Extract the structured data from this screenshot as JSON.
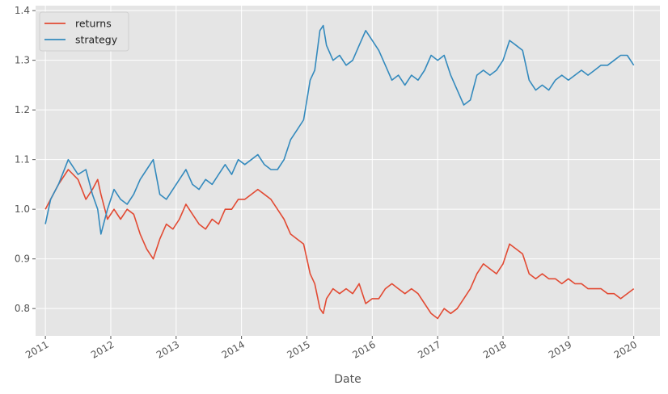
{
  "chart_data": {
    "type": "line",
    "title": "",
    "xlabel": "Date",
    "ylabel": "",
    "x_ticks": [
      "2011",
      "2012",
      "2013",
      "2014",
      "2015",
      "2016",
      "2017",
      "2018",
      "2019",
      "2020"
    ],
    "y_ticks": [
      "0.8",
      "0.9",
      "1.0",
      "1.1",
      "1.2",
      "1.3",
      "1.4"
    ],
    "xlim": [
      2010.85,
      2020.4
    ],
    "ylim": [
      0.745,
      1.41
    ],
    "grid": true,
    "legend_position": "top-left",
    "series": [
      {
        "name": "returns",
        "color": "#E24A33",
        "points": [
          [
            2011.0,
            1.0
          ],
          [
            2011.08,
            1.02
          ],
          [
            2011.2,
            1.05
          ],
          [
            2011.35,
            1.08
          ],
          [
            2011.5,
            1.06
          ],
          [
            2011.62,
            1.02
          ],
          [
            2011.72,
            1.04
          ],
          [
            2011.8,
            1.06
          ],
          [
            2011.85,
            1.03
          ],
          [
            2011.95,
            0.98
          ],
          [
            2012.05,
            1.0
          ],
          [
            2012.15,
            0.98
          ],
          [
            2012.25,
            1.0
          ],
          [
            2012.35,
            0.99
          ],
          [
            2012.45,
            0.95
          ],
          [
            2012.55,
            0.92
          ],
          [
            2012.65,
            0.9
          ],
          [
            2012.75,
            0.94
          ],
          [
            2012.85,
            0.97
          ],
          [
            2012.95,
            0.96
          ],
          [
            2013.05,
            0.98
          ],
          [
            2013.15,
            1.01
          ],
          [
            2013.25,
            0.99
          ],
          [
            2013.35,
            0.97
          ],
          [
            2013.45,
            0.96
          ],
          [
            2013.55,
            0.98
          ],
          [
            2013.65,
            0.97
          ],
          [
            2013.75,
            1.0
          ],
          [
            2013.85,
            1.0
          ],
          [
            2013.95,
            1.02
          ],
          [
            2014.05,
            1.02
          ],
          [
            2014.15,
            1.03
          ],
          [
            2014.25,
            1.04
          ],
          [
            2014.35,
            1.03
          ],
          [
            2014.45,
            1.02
          ],
          [
            2014.55,
            1.0
          ],
          [
            2014.65,
            0.98
          ],
          [
            2014.75,
            0.95
          ],
          [
            2014.85,
            0.94
          ],
          [
            2014.95,
            0.93
          ],
          [
            2015.0,
            0.9
          ],
          [
            2015.05,
            0.87
          ],
          [
            2015.12,
            0.85
          ],
          [
            2015.2,
            0.8
          ],
          [
            2015.25,
            0.79
          ],
          [
            2015.3,
            0.82
          ],
          [
            2015.4,
            0.84
          ],
          [
            2015.5,
            0.83
          ],
          [
            2015.6,
            0.84
          ],
          [
            2015.7,
            0.83
          ],
          [
            2015.8,
            0.85
          ],
          [
            2015.9,
            0.81
          ],
          [
            2016.0,
            0.82
          ],
          [
            2016.1,
            0.82
          ],
          [
            2016.2,
            0.84
          ],
          [
            2016.3,
            0.85
          ],
          [
            2016.4,
            0.84
          ],
          [
            2016.5,
            0.83
          ],
          [
            2016.6,
            0.84
          ],
          [
            2016.7,
            0.83
          ],
          [
            2016.8,
            0.81
          ],
          [
            2016.9,
            0.79
          ],
          [
            2017.0,
            0.78
          ],
          [
            2017.1,
            0.8
          ],
          [
            2017.2,
            0.79
          ],
          [
            2017.3,
            0.8
          ],
          [
            2017.4,
            0.82
          ],
          [
            2017.5,
            0.84
          ],
          [
            2017.6,
            0.87
          ],
          [
            2017.7,
            0.89
          ],
          [
            2017.8,
            0.88
          ],
          [
            2017.9,
            0.87
          ],
          [
            2018.0,
            0.89
          ],
          [
            2018.1,
            0.93
          ],
          [
            2018.2,
            0.92
          ],
          [
            2018.3,
            0.91
          ],
          [
            2018.4,
            0.87
          ],
          [
            2018.5,
            0.86
          ],
          [
            2018.6,
            0.87
          ],
          [
            2018.7,
            0.86
          ],
          [
            2018.8,
            0.86
          ],
          [
            2018.9,
            0.85
          ],
          [
            2019.0,
            0.86
          ],
          [
            2019.1,
            0.85
          ],
          [
            2019.2,
            0.85
          ],
          [
            2019.3,
            0.84
          ],
          [
            2019.4,
            0.84
          ],
          [
            2019.5,
            0.84
          ],
          [
            2019.6,
            0.83
          ],
          [
            2019.7,
            0.83
          ],
          [
            2019.8,
            0.82
          ],
          [
            2019.9,
            0.83
          ],
          [
            2020.0,
            0.84
          ]
        ]
      },
      {
        "name": "strategy",
        "color": "#348ABD",
        "points": [
          [
            2011.0,
            0.97
          ],
          [
            2011.08,
            1.02
          ],
          [
            2011.2,
            1.05
          ],
          [
            2011.35,
            1.1
          ],
          [
            2011.5,
            1.07
          ],
          [
            2011.62,
            1.08
          ],
          [
            2011.72,
            1.03
          ],
          [
            2011.8,
            1.0
          ],
          [
            2011.85,
            0.95
          ],
          [
            2011.95,
            1.0
          ],
          [
            2012.05,
            1.04
          ],
          [
            2012.15,
            1.02
          ],
          [
            2012.25,
            1.01
          ],
          [
            2012.35,
            1.03
          ],
          [
            2012.45,
            1.06
          ],
          [
            2012.55,
            1.08
          ],
          [
            2012.65,
            1.1
          ],
          [
            2012.75,
            1.03
          ],
          [
            2012.85,
            1.02
          ],
          [
            2012.95,
            1.04
          ],
          [
            2013.05,
            1.06
          ],
          [
            2013.15,
            1.08
          ],
          [
            2013.25,
            1.05
          ],
          [
            2013.35,
            1.04
          ],
          [
            2013.45,
            1.06
          ],
          [
            2013.55,
            1.05
          ],
          [
            2013.65,
            1.07
          ],
          [
            2013.75,
            1.09
          ],
          [
            2013.85,
            1.07
          ],
          [
            2013.95,
            1.1
          ],
          [
            2014.05,
            1.09
          ],
          [
            2014.15,
            1.1
          ],
          [
            2014.25,
            1.11
          ],
          [
            2014.35,
            1.09
          ],
          [
            2014.45,
            1.08
          ],
          [
            2014.55,
            1.08
          ],
          [
            2014.65,
            1.1
          ],
          [
            2014.75,
            1.14
          ],
          [
            2014.85,
            1.16
          ],
          [
            2014.95,
            1.18
          ],
          [
            2015.0,
            1.22
          ],
          [
            2015.05,
            1.26
          ],
          [
            2015.12,
            1.28
          ],
          [
            2015.2,
            1.36
          ],
          [
            2015.25,
            1.37
          ],
          [
            2015.3,
            1.33
          ],
          [
            2015.4,
            1.3
          ],
          [
            2015.5,
            1.31
          ],
          [
            2015.6,
            1.29
          ],
          [
            2015.7,
            1.3
          ],
          [
            2015.8,
            1.33
          ],
          [
            2015.9,
            1.36
          ],
          [
            2016.0,
            1.34
          ],
          [
            2016.1,
            1.32
          ],
          [
            2016.2,
            1.29
          ],
          [
            2016.3,
            1.26
          ],
          [
            2016.4,
            1.27
          ],
          [
            2016.5,
            1.25
          ],
          [
            2016.6,
            1.27
          ],
          [
            2016.7,
            1.26
          ],
          [
            2016.8,
            1.28
          ],
          [
            2016.9,
            1.31
          ],
          [
            2017.0,
            1.3
          ],
          [
            2017.1,
            1.31
          ],
          [
            2017.2,
            1.27
          ],
          [
            2017.3,
            1.24
          ],
          [
            2017.4,
            1.21
          ],
          [
            2017.5,
            1.22
          ],
          [
            2017.6,
            1.27
          ],
          [
            2017.7,
            1.28
          ],
          [
            2017.8,
            1.27
          ],
          [
            2017.9,
            1.28
          ],
          [
            2018.0,
            1.3
          ],
          [
            2018.1,
            1.34
          ],
          [
            2018.2,
            1.33
          ],
          [
            2018.3,
            1.32
          ],
          [
            2018.4,
            1.26
          ],
          [
            2018.5,
            1.24
          ],
          [
            2018.6,
            1.25
          ],
          [
            2018.7,
            1.24
          ],
          [
            2018.8,
            1.26
          ],
          [
            2018.9,
            1.27
          ],
          [
            2019.0,
            1.26
          ],
          [
            2019.1,
            1.27
          ],
          [
            2019.2,
            1.28
          ],
          [
            2019.3,
            1.27
          ],
          [
            2019.4,
            1.28
          ],
          [
            2019.5,
            1.29
          ],
          [
            2019.6,
            1.29
          ],
          [
            2019.7,
            1.3
          ],
          [
            2019.8,
            1.31
          ],
          [
            2019.9,
            1.31
          ],
          [
            2020.0,
            1.29
          ]
        ]
      }
    ]
  }
}
